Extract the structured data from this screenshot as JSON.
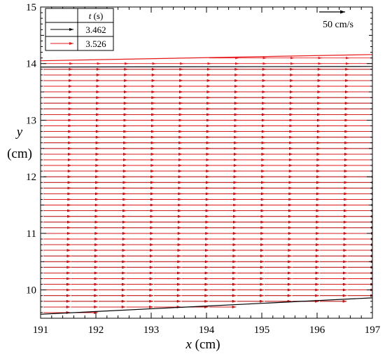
{
  "chart_data": {
    "type": "vector-field",
    "xlabel": {
      "var": "x",
      "unit": "(cm)"
    },
    "ylabel": {
      "var": "y",
      "unit": "(cm)"
    },
    "xlim": [
      191,
      197
    ],
    "ylim": [
      9.5,
      15
    ],
    "xticks": [
      "191",
      "192",
      "193",
      "194",
      "195",
      "196",
      "197"
    ],
    "yticks": [
      "10",
      "11",
      "12",
      "13",
      "14",
      "15"
    ],
    "legend": {
      "header_var": "t",
      "header_unit": " (s)",
      "entries": [
        {
          "label": "3.462",
          "color": "#000000"
        },
        {
          "label": "3.526",
          "color": "#e8191b"
        }
      ]
    },
    "reference_vector": {
      "label": "50 cm/s",
      "magnitude_cm_s": 50,
      "color": "#000000"
    },
    "surface_lines": [
      {
        "name": "black",
        "color": "#000000",
        "top": {
          "x": [
            191,
            197
          ],
          "y": [
            13.94,
            13.95
          ]
        },
        "bottom": {
          "x": [
            191,
            197
          ],
          "y": [
            9.57,
            9.86
          ]
        }
      },
      {
        "name": "red",
        "color": "#e8191b",
        "top": {
          "x": [
            191,
            197
          ],
          "y": [
            14.05,
            14.16
          ]
        }
      }
    ],
    "vector_field": {
      "columns_x": [
        191.05,
        191.55,
        192.05,
        192.55,
        193.05,
        193.55,
        194.05,
        194.55,
        195.05,
        195.55,
        196.05,
        196.55
      ],
      "y_start": 9.6,
      "y_step": 0.1,
      "series": [
        {
          "t": "3.462",
          "color": "#000000",
          "speed_at_crest_cm_s": 56,
          "speed_at_bed_cm_s": 51
        },
        {
          "t": "3.526",
          "color": "#e8191b",
          "speed_at_crest_cm_s": 57,
          "speed_at_bed_cm_s": 52
        }
      ]
    }
  }
}
